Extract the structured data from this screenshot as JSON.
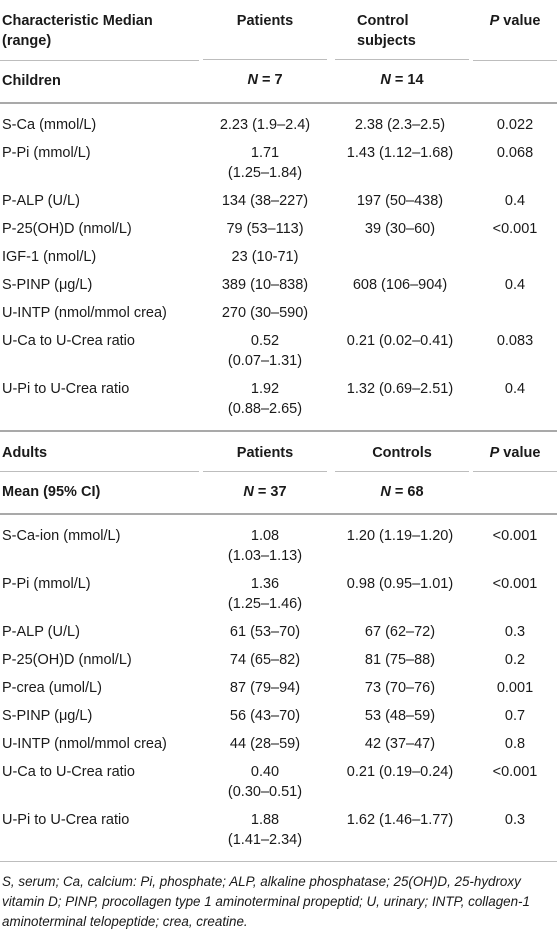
{
  "children_section": {
    "header": {
      "col1": "Characteristic Median (range)",
      "col2": "Patients",
      "col3": "Control subjects",
      "col4_p": "P",
      "col4_rest": " value"
    },
    "subheader": {
      "label": "Children",
      "n_patients_var": "N",
      "n_patients_val": " = 7",
      "n_controls_var": "N",
      "n_controls_val": " = 14"
    },
    "rows": [
      {
        "label": "S-Ca (mmol/L)",
        "patients": "2.23 (1.9–2.4)",
        "controls": "2.38 (2.3–2.5)",
        "p": "0.022"
      },
      {
        "label": "P-Pi (mmol/L)",
        "patients": "1.71\n(1.25–1.84)",
        "controls": "1.43 (1.12–1.68)",
        "p": "0.068"
      },
      {
        "label": "P-ALP (U/L)",
        "patients": "134 (38–227)",
        "controls": "197 (50–438)",
        "p": "0.4"
      },
      {
        "label": "P-25(OH)D (nmol/L)",
        "patients": "79 (53–113)",
        "controls": "39 (30–60)",
        "p": "<0.001"
      },
      {
        "label": "IGF-1 (nmol/L)",
        "patients": "23 (10-71)",
        "controls": "",
        "p": ""
      },
      {
        "label": "S-PINP (μg/L)",
        "patients": "389 (10–838)",
        "controls": "608 (106–904)",
        "p": "0.4"
      },
      {
        "label": "U-INTP (nmol/mmol crea)",
        "patients": "270 (30–590)",
        "controls": "",
        "p": ""
      },
      {
        "label": "U-Ca to U-Crea ratio",
        "patients": "0.52\n(0.07–1.31)",
        "controls": "0.21 (0.02–0.41)",
        "p": "0.083"
      },
      {
        "label": "U-Pi to U-Crea ratio",
        "patients": "1.92\n(0.88–2.65)",
        "controls": "1.32 (0.69–2.51)",
        "p": "0.4"
      }
    ]
  },
  "adults_section": {
    "header": {
      "col1": "Adults",
      "col2": "Patients",
      "col3": "Controls",
      "col4_p": "P",
      "col4_rest": " value"
    },
    "subheader": {
      "label": "Mean (95% CI)",
      "n_patients_var": "N",
      "n_patients_val": " = 37",
      "n_controls_var": "N",
      "n_controls_val": " = 68"
    },
    "rows": [
      {
        "label": "S-Ca-ion (mmol/L)",
        "patients": "1.08\n(1.03–1.13)",
        "controls": "1.20 (1.19–1.20)",
        "p": "<0.001"
      },
      {
        "label": "P-Pi (mmol/L)",
        "patients": "1.36\n(1.25–1.46)",
        "controls": "0.98 (0.95–1.01)",
        "p": "<0.001"
      },
      {
        "label": "P-ALP (U/L)",
        "patients": "61 (53–70)",
        "controls": "67 (62–72)",
        "p": "0.3"
      },
      {
        "label": "P-25(OH)D (nmol/L)",
        "patients": "74 (65–82)",
        "controls": "81 (75–88)",
        "p": "0.2"
      },
      {
        "label": "P-crea (umol/L)",
        "patients": "87 (79–94)",
        "controls": "73 (70–76)",
        "p": "0.001"
      },
      {
        "label": "S-PINP (μg/L)",
        "patients": "56 (43–70)",
        "controls": "53 (48–59)",
        "p": "0.7"
      },
      {
        "label": "U-INTP (nmol/mmol crea)",
        "patients": "44 (28–59)",
        "controls": "42 (37–47)",
        "p": "0.8"
      },
      {
        "label": "U-Ca to U-Crea ratio",
        "patients": "0.40\n(0.30–0.51)",
        "controls": "0.21 (0.19–0.24)",
        "p": "<0.001"
      },
      {
        "label": "U-Pi to U-Crea ratio",
        "patients": "1.88\n(1.41–2.34)",
        "controls": "1.62 (1.46–1.77)",
        "p": "0.3"
      }
    ]
  },
  "footnote": "S, serum; Ca, calcium: Pi, phosphate; ALP, alkaline phosphatase; 25(OH)D, 25-hydroxy vitamin D; PINP, procollagen type 1 aminoterminal propeptid; U, urinary; INTP, collagen-1 aminoterminal telopeptide; crea, creatine."
}
